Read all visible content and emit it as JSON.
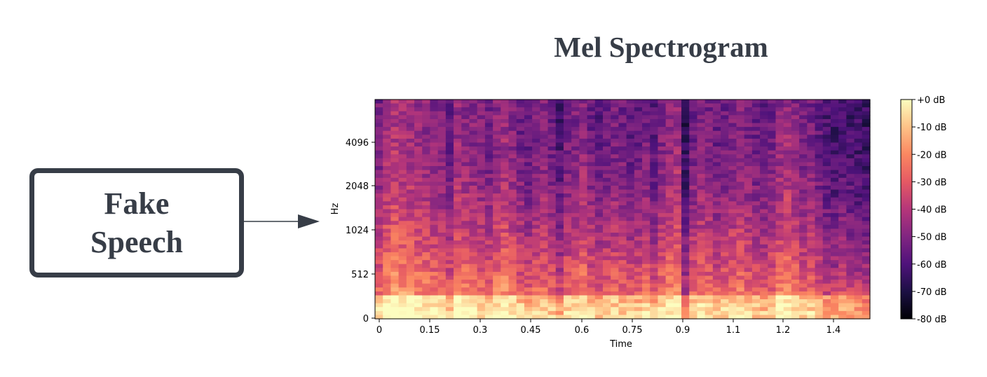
{
  "diagram": {
    "title": "Mel Spectrogram",
    "source_node": {
      "line1": "Fake",
      "line2": "Speech"
    }
  },
  "chart_data": {
    "type": "heatmap",
    "xlabel": "Time",
    "ylabel": "Hz",
    "x_ticks": [
      "0",
      "0.15",
      "0.3",
      "0.45",
      "0.6",
      "0.75",
      "0.9",
      "1.1",
      "1.2",
      "1.4"
    ],
    "y_ticks": [
      "0",
      "512",
      "1024",
      "2048",
      "4096"
    ],
    "colorbar": {
      "ticks": [
        "+0 dB",
        "-10 dB",
        "-20 dB",
        "-30 dB",
        "-40 dB",
        "-50 dB",
        "-60 dB",
        "-70 dB",
        "-80 dB"
      ],
      "range": [
        -80,
        0
      ],
      "colormap": "magma"
    }
  }
}
